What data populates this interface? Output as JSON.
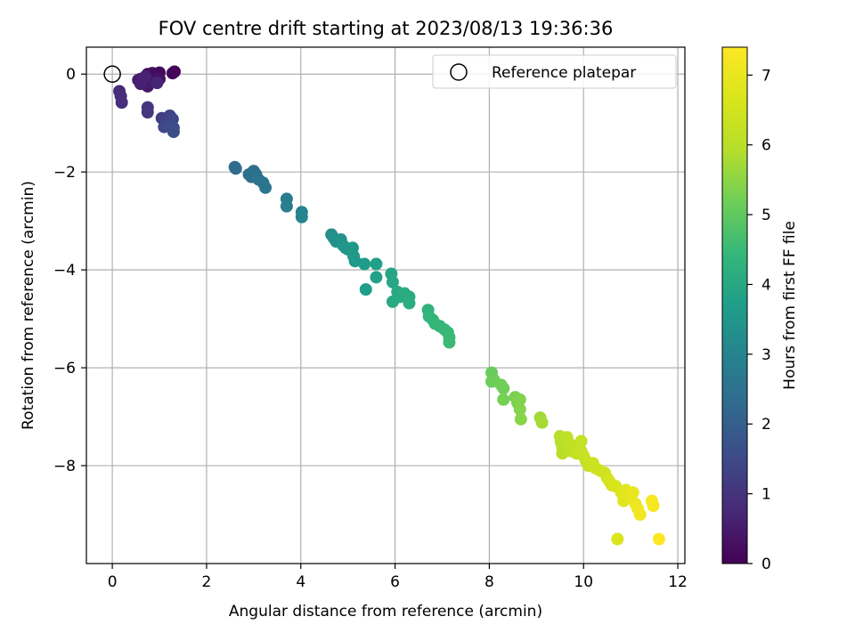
{
  "chart_data": {
    "type": "scatter",
    "title": "FOV centre drift starting at 2023/08/13 19:36:36",
    "xlabel": "Angular distance from reference (arcmin)",
    "ylabel": "Rotation from reference (arcmin)",
    "xlim": [
      -0.55,
      12.15
    ],
    "ylim": [
      -10.0,
      0.55
    ],
    "xticks": [
      0,
      2,
      4,
      6,
      8,
      10,
      12
    ],
    "yticks": [
      0,
      -2,
      -4,
      -6,
      -8
    ],
    "xtick_labels": [
      "0",
      "2",
      "4",
      "6",
      "8",
      "10",
      "12"
    ],
    "ytick_labels": [
      "0",
      "−2",
      "−4",
      "−6",
      "−8"
    ],
    "grid": true,
    "legend": {
      "position": "top-right",
      "entries": [
        "Reference platepar"
      ]
    },
    "reference_point": {
      "x": 0,
      "y": 0
    },
    "colorbar": {
      "label": "Hours from first FF file",
      "colormap": "viridis",
      "min": 0,
      "max": 7.4,
      "ticks": [
        0,
        1,
        2,
        3,
        4,
        5,
        6,
        7
      ],
      "tick_labels": [
        "0",
        "1",
        "2",
        "3",
        "4",
        "5",
        "6",
        "7"
      ]
    },
    "points": [
      {
        "x": 1.32,
        "y": 0.05,
        "t": 0.05
      },
      {
        "x": 1.28,
        "y": 0.02,
        "t": 0.1
      },
      {
        "x": 1.0,
        "y": 0.03,
        "t": 0.15
      },
      {
        "x": 0.85,
        "y": 0.02,
        "t": 0.2
      },
      {
        "x": 0.75,
        "y": 0.0,
        "t": 0.25
      },
      {
        "x": 1.0,
        "y": -0.1,
        "t": 0.3
      },
      {
        "x": 0.9,
        "y": -0.12,
        "t": 0.35
      },
      {
        "x": 0.8,
        "y": -0.15,
        "t": 0.4
      },
      {
        "x": 0.75,
        "y": -0.25,
        "t": 0.45
      },
      {
        "x": 0.6,
        "y": -0.1,
        "t": 0.5
      },
      {
        "x": 0.55,
        "y": -0.12,
        "t": 0.55
      },
      {
        "x": 0.6,
        "y": -0.2,
        "t": 0.6
      },
      {
        "x": 0.7,
        "y": -0.05,
        "t": 0.65
      },
      {
        "x": 0.95,
        "y": -0.18,
        "t": 0.7
      },
      {
        "x": 0.15,
        "y": -0.35,
        "t": 0.8
      },
      {
        "x": 0.18,
        "y": -0.45,
        "t": 0.85
      },
      {
        "x": 0.2,
        "y": -0.58,
        "t": 0.9
      },
      {
        "x": 0.75,
        "y": -0.68,
        "t": 1.0
      },
      {
        "x": 0.75,
        "y": -0.78,
        "t": 1.05
      },
      {
        "x": 1.05,
        "y": -0.9,
        "t": 1.2
      },
      {
        "x": 1.12,
        "y": -0.95,
        "t": 1.3
      },
      {
        "x": 1.22,
        "y": -0.85,
        "t": 1.35
      },
      {
        "x": 1.28,
        "y": -0.92,
        "t": 1.4
      },
      {
        "x": 1.1,
        "y": -1.08,
        "t": 1.45
      },
      {
        "x": 1.2,
        "y": -1.05,
        "t": 1.5
      },
      {
        "x": 1.3,
        "y": -1.1,
        "t": 1.55
      },
      {
        "x": 1.3,
        "y": -1.18,
        "t": 1.6
      },
      {
        "x": 2.6,
        "y": -1.9,
        "t": 2.3
      },
      {
        "x": 2.62,
        "y": -1.93,
        "t": 2.32
      },
      {
        "x": 2.9,
        "y": -2.05,
        "t": 2.4
      },
      {
        "x": 2.95,
        "y": -2.1,
        "t": 2.42
      },
      {
        "x": 3.0,
        "y": -1.98,
        "t": 2.44
      },
      {
        "x": 3.05,
        "y": -2.05,
        "t": 2.46
      },
      {
        "x": 3.1,
        "y": -2.15,
        "t": 2.5
      },
      {
        "x": 3.2,
        "y": -2.22,
        "t": 2.55
      },
      {
        "x": 3.25,
        "y": -2.32,
        "t": 2.6
      },
      {
        "x": 3.7,
        "y": -2.55,
        "t": 2.8
      },
      {
        "x": 3.7,
        "y": -2.7,
        "t": 2.85
      },
      {
        "x": 4.02,
        "y": -2.82,
        "t": 2.95
      },
      {
        "x": 4.02,
        "y": -2.92,
        "t": 3.0
      },
      {
        "x": 4.65,
        "y": -3.28,
        "t": 3.3
      },
      {
        "x": 4.7,
        "y": -3.35,
        "t": 3.35
      },
      {
        "x": 4.75,
        "y": -3.42,
        "t": 3.4
      },
      {
        "x": 4.85,
        "y": -3.38,
        "t": 3.42
      },
      {
        "x": 4.9,
        "y": -3.5,
        "t": 3.45
      },
      {
        "x": 4.95,
        "y": -3.55,
        "t": 3.48
      },
      {
        "x": 5.0,
        "y": -3.58,
        "t": 3.5
      },
      {
        "x": 5.1,
        "y": -3.55,
        "t": 3.52
      },
      {
        "x": 5.12,
        "y": -3.72,
        "t": 3.55
      },
      {
        "x": 5.15,
        "y": -3.82,
        "t": 3.6
      },
      {
        "x": 5.35,
        "y": -3.88,
        "t": 3.65
      },
      {
        "x": 5.38,
        "y": -4.4,
        "t": 3.7
      },
      {
        "x": 5.6,
        "y": -3.88,
        "t": 3.75
      },
      {
        "x": 5.6,
        "y": -4.15,
        "t": 3.8
      },
      {
        "x": 5.92,
        "y": -4.08,
        "t": 3.9
      },
      {
        "x": 5.95,
        "y": -4.25,
        "t": 3.95
      },
      {
        "x": 6.05,
        "y": -4.45,
        "t": 4.0
      },
      {
        "x": 5.95,
        "y": -4.65,
        "t": 4.02
      },
      {
        "x": 6.1,
        "y": -4.55,
        "t": 4.05
      },
      {
        "x": 6.2,
        "y": -4.48,
        "t": 4.1
      },
      {
        "x": 6.3,
        "y": -4.55,
        "t": 4.12
      },
      {
        "x": 6.3,
        "y": -4.68,
        "t": 4.15
      },
      {
        "x": 6.7,
        "y": -4.82,
        "t": 4.3
      },
      {
        "x": 6.72,
        "y": -4.95,
        "t": 4.35
      },
      {
        "x": 6.8,
        "y": -5.02,
        "t": 4.38
      },
      {
        "x": 6.85,
        "y": -5.1,
        "t": 4.4
      },
      {
        "x": 6.95,
        "y": -5.15,
        "t": 4.42
      },
      {
        "x": 7.05,
        "y": -5.22,
        "t": 4.45
      },
      {
        "x": 7.12,
        "y": -5.28,
        "t": 4.48
      },
      {
        "x": 7.15,
        "y": -5.38,
        "t": 4.5
      },
      {
        "x": 7.15,
        "y": -5.48,
        "t": 4.52
      },
      {
        "x": 8.05,
        "y": -6.1,
        "t": 5.1
      },
      {
        "x": 8.05,
        "y": -6.28,
        "t": 5.12
      },
      {
        "x": 8.1,
        "y": -6.25,
        "t": 5.15
      },
      {
        "x": 8.25,
        "y": -6.35,
        "t": 5.18
      },
      {
        "x": 8.3,
        "y": -6.42,
        "t": 5.2
      },
      {
        "x": 8.3,
        "y": -6.65,
        "t": 5.25
      },
      {
        "x": 8.55,
        "y": -6.6,
        "t": 5.3
      },
      {
        "x": 8.6,
        "y": -6.72,
        "t": 5.35
      },
      {
        "x": 8.65,
        "y": -6.65,
        "t": 5.38
      },
      {
        "x": 8.65,
        "y": -6.85,
        "t": 5.4
      },
      {
        "x": 8.67,
        "y": -7.05,
        "t": 5.45
      },
      {
        "x": 9.08,
        "y": -7.02,
        "t": 5.7
      },
      {
        "x": 9.12,
        "y": -7.12,
        "t": 5.75
      },
      {
        "x": 9.5,
        "y": -7.4,
        "t": 5.95
      },
      {
        "x": 9.52,
        "y": -7.52,
        "t": 6.0
      },
      {
        "x": 9.55,
        "y": -7.62,
        "t": 6.02
      },
      {
        "x": 9.55,
        "y": -7.75,
        "t": 6.05
      },
      {
        "x": 9.65,
        "y": -7.42,
        "t": 6.08
      },
      {
        "x": 9.7,
        "y": -7.55,
        "t": 6.1
      },
      {
        "x": 9.72,
        "y": -7.7,
        "t": 6.12
      },
      {
        "x": 9.8,
        "y": -7.6,
        "t": 6.15
      },
      {
        "x": 9.85,
        "y": -7.75,
        "t": 6.18
      },
      {
        "x": 9.95,
        "y": -7.5,
        "t": 6.2
      },
      {
        "x": 9.95,
        "y": -7.7,
        "t": 6.22
      },
      {
        "x": 10.0,
        "y": -7.8,
        "t": 6.25
      },
      {
        "x": 10.05,
        "y": -7.9,
        "t": 6.28
      },
      {
        "x": 10.1,
        "y": -8.0,
        "t": 6.3
      },
      {
        "x": 10.2,
        "y": -7.95,
        "t": 6.35
      },
      {
        "x": 10.25,
        "y": -8.05,
        "t": 6.38
      },
      {
        "x": 10.35,
        "y": -8.1,
        "t": 6.42
      },
      {
        "x": 10.45,
        "y": -8.15,
        "t": 6.45
      },
      {
        "x": 10.5,
        "y": -8.25,
        "t": 6.5
      },
      {
        "x": 10.55,
        "y": -8.32,
        "t": 6.55
      },
      {
        "x": 10.6,
        "y": -8.4,
        "t": 6.6
      },
      {
        "x": 10.68,
        "y": -8.42,
        "t": 6.65
      },
      {
        "x": 10.8,
        "y": -8.55,
        "t": 6.75
      },
      {
        "x": 10.85,
        "y": -8.72,
        "t": 6.8
      },
      {
        "x": 10.9,
        "y": -8.5,
        "t": 6.85
      },
      {
        "x": 10.95,
        "y": -8.6,
        "t": 6.9
      },
      {
        "x": 11.0,
        "y": -8.65,
        "t": 6.95
      },
      {
        "x": 11.05,
        "y": -8.55,
        "t": 7.0
      },
      {
        "x": 11.1,
        "y": -8.78,
        "t": 7.05
      },
      {
        "x": 11.15,
        "y": -8.88,
        "t": 7.1
      },
      {
        "x": 11.2,
        "y": -9.0,
        "t": 7.15
      },
      {
        "x": 11.45,
        "y": -8.72,
        "t": 7.25
      },
      {
        "x": 11.48,
        "y": -8.82,
        "t": 7.28
      },
      {
        "x": 10.72,
        "y": -9.5,
        "t": 6.7
      },
      {
        "x": 11.6,
        "y": -9.5,
        "t": 7.38
      }
    ]
  }
}
